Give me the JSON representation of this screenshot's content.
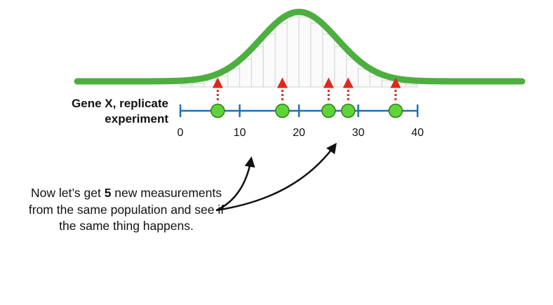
{
  "axis_label": {
    "line1": "Gene X, replicate",
    "line2": "experiment"
  },
  "axis": {
    "min": 0,
    "max": 40,
    "ticks": [
      0,
      10,
      20,
      30,
      40
    ],
    "tick_labels": [
      "0",
      "10",
      "20",
      "30",
      "40"
    ]
  },
  "distribution": {
    "mean": 20,
    "sd": 6.5,
    "histogram_bins_start": 0,
    "histogram_bins_end": 40,
    "histogram_bin_width": 2
  },
  "measurements": [
    6.3,
    17.2,
    25,
    28.3,
    36.3
  ],
  "caption": {
    "before_bold": "Now let’s get ",
    "bold": "5",
    "after_bold": " new measurements from the same population and see if the same thing happens."
  },
  "colors": {
    "curve": "#4caf3f",
    "axis": "#1f6fb0",
    "point_fill": "#5fd43a",
    "point_stroke": "#2e7d1f",
    "dotted_arrow": "#e0281c",
    "histogram": "#d9d9d9",
    "pointer_arrow": "#111111"
  },
  "icons": {
    "pointer_arrows": "black-curved-arrow-icon",
    "up_arrows": "red-dotted-up-arrow-icon"
  }
}
